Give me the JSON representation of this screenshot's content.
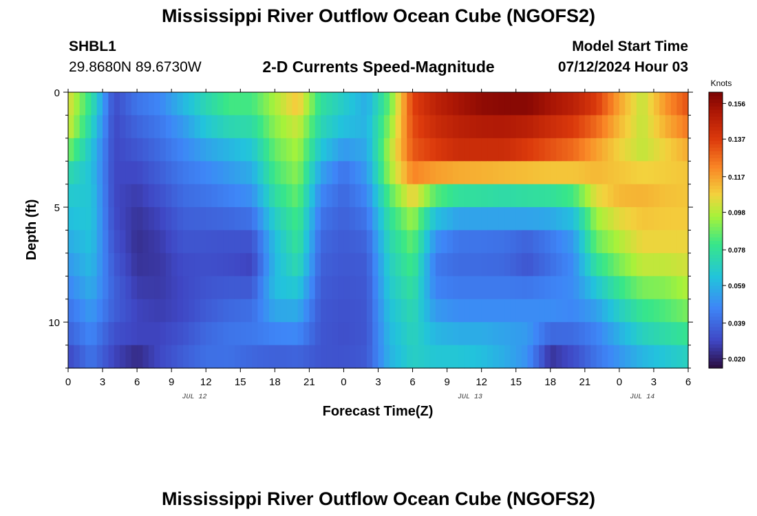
{
  "figure": {
    "title": "Mississippi River Outflow Ocean Cube (NGOFS2)",
    "station_id": "SHBL1",
    "station_coords": "29.8680N  89.6730W",
    "subtitle": "2-D Currents Speed-Magnitude",
    "model_start_label": "Model Start Time",
    "model_start_value": "07/12/2024 Hour 03",
    "bottom_title": "Mississippi River Outflow Ocean Cube (NGOFS2)"
  },
  "chart_data": {
    "type": "heatmap",
    "title": "2-D Currents Speed-Magnitude",
    "xlabel": "Forecast Time(Z)",
    "ylabel": "Depth (ft)",
    "x_hours": [
      0,
      54
    ],
    "y_depth_ft": [
      0,
      12
    ],
    "xlim": [
      0,
      54
    ],
    "ylim": [
      0,
      12
    ],
    "x_tick_labels": [
      "0",
      "3",
      "6",
      "9",
      "12",
      "15",
      "18",
      "21",
      "0",
      "3",
      "6",
      "9",
      "12",
      "15",
      "18",
      "21",
      "0",
      "3",
      "6"
    ],
    "x_date_labels": [
      {
        "hour": 11,
        "label": "JUL 12"
      },
      {
        "hour": 35,
        "label": "JUL 13"
      },
      {
        "hour": 50,
        "label": "JUL 14"
      }
    ],
    "y_tick_labels": [
      "0",
      "5",
      "10"
    ],
    "y_tick_values": [
      0,
      5,
      10
    ],
    "colorbar": {
      "unit": "Knots",
      "min": 0.015,
      "max": 0.162,
      "ticks": [
        "0.156",
        "0.137",
        "0.117",
        "0.098",
        "0.078",
        "0.059",
        "0.039",
        "0.020"
      ],
      "tick_values": [
        0.156,
        0.137,
        0.117,
        0.098,
        0.078,
        0.059,
        0.039,
        0.02
      ]
    },
    "x_columns_hours": [
      0,
      2,
      4,
      6,
      8,
      10,
      12,
      14,
      16,
      18,
      20,
      22,
      24,
      26,
      28,
      30,
      32,
      34,
      36,
      38,
      40,
      42,
      44,
      46,
      48,
      50,
      52,
      54
    ],
    "depth_rows_ft": [
      0,
      1,
      2,
      3,
      4,
      5,
      6,
      7,
      8,
      9,
      10,
      11,
      12
    ],
    "speed_knots": [
      [
        0.105,
        0.08,
        0.032,
        0.045,
        0.05,
        0.065,
        0.075,
        0.085,
        0.085,
        0.098,
        0.115,
        0.08,
        0.07,
        0.055,
        0.085,
        0.136,
        0.148,
        0.156,
        0.16,
        0.162,
        0.162,
        0.156,
        0.15,
        0.14,
        0.118,
        0.1,
        0.12,
        0.135
      ],
      [
        0.105,
        0.075,
        0.03,
        0.04,
        0.045,
        0.055,
        0.07,
        0.08,
        0.08,
        0.095,
        0.105,
        0.075,
        0.065,
        0.06,
        0.09,
        0.135,
        0.146,
        0.15,
        0.155,
        0.156,
        0.156,
        0.15,
        0.145,
        0.135,
        0.115,
        0.1,
        0.118,
        0.13
      ],
      [
        0.1,
        0.068,
        0.03,
        0.036,
        0.042,
        0.05,
        0.06,
        0.065,
        0.07,
        0.09,
        0.098,
        0.07,
        0.06,
        0.058,
        0.095,
        0.132,
        0.14,
        0.145,
        0.145,
        0.145,
        0.14,
        0.135,
        0.13,
        0.12,
        0.11,
        0.1,
        0.11,
        0.12
      ],
      [
        0.08,
        0.062,
        0.03,
        0.032,
        0.038,
        0.045,
        0.05,
        0.055,
        0.06,
        0.085,
        0.095,
        0.06,
        0.045,
        0.055,
        0.1,
        0.13,
        0.135,
        0.14,
        0.14,
        0.14,
        0.135,
        0.13,
        0.125,
        0.115,
        0.105,
        0.1,
        0.105,
        0.11
      ],
      [
        0.068,
        0.065,
        0.03,
        0.028,
        0.035,
        0.042,
        0.045,
        0.05,
        0.055,
        0.08,
        0.09,
        0.05,
        0.04,
        0.05,
        0.09,
        0.115,
        0.1,
        0.09,
        0.088,
        0.085,
        0.088,
        0.09,
        0.095,
        0.11,
        0.115,
        0.115,
        0.112,
        0.11
      ],
      [
        0.065,
        0.065,
        0.03,
        0.026,
        0.03,
        0.038,
        0.04,
        0.042,
        0.045,
        0.072,
        0.085,
        0.045,
        0.038,
        0.045,
        0.08,
        0.1,
        0.07,
        0.065,
        0.065,
        0.065,
        0.065,
        0.065,
        0.07,
        0.1,
        0.11,
        0.112,
        0.11,
        0.11
      ],
      [
        0.06,
        0.065,
        0.032,
        0.024,
        0.028,
        0.035,
        0.035,
        0.036,
        0.038,
        0.065,
        0.08,
        0.04,
        0.036,
        0.04,
        0.075,
        0.09,
        0.055,
        0.045,
        0.045,
        0.045,
        0.045,
        0.048,
        0.055,
        0.09,
        0.1,
        0.108,
        0.108,
        0.108
      ],
      [
        0.055,
        0.062,
        0.034,
        0.024,
        0.026,
        0.032,
        0.032,
        0.03,
        0.028,
        0.06,
        0.078,
        0.038,
        0.035,
        0.036,
        0.07,
        0.085,
        0.045,
        0.04,
        0.04,
        0.038,
        0.03,
        0.04,
        0.05,
        0.085,
        0.095,
        0.105,
        0.105,
        0.105
      ],
      [
        0.05,
        0.06,
        0.036,
        0.026,
        0.026,
        0.03,
        0.032,
        0.032,
        0.03,
        0.062,
        0.07,
        0.036,
        0.034,
        0.035,
        0.068,
        0.08,
        0.043,
        0.04,
        0.04,
        0.04,
        0.038,
        0.042,
        0.048,
        0.07,
        0.085,
        0.095,
        0.095,
        0.1
      ],
      [
        0.045,
        0.055,
        0.038,
        0.028,
        0.027,
        0.03,
        0.035,
        0.038,
        0.04,
        0.062,
        0.062,
        0.035,
        0.033,
        0.034,
        0.065,
        0.075,
        0.05,
        0.048,
        0.048,
        0.048,
        0.048,
        0.05,
        0.05,
        0.06,
        0.075,
        0.085,
        0.088,
        0.095
      ],
      [
        0.04,
        0.05,
        0.035,
        0.03,
        0.028,
        0.03,
        0.036,
        0.04,
        0.042,
        0.05,
        0.052,
        0.034,
        0.032,
        0.034,
        0.062,
        0.072,
        0.055,
        0.05,
        0.05,
        0.05,
        0.05,
        0.048,
        0.045,
        0.048,
        0.062,
        0.075,
        0.08,
        0.085
      ],
      [
        0.035,
        0.045,
        0.03,
        0.028,
        0.03,
        0.036,
        0.042,
        0.045,
        0.045,
        0.044,
        0.044,
        0.034,
        0.032,
        0.034,
        0.06,
        0.07,
        0.065,
        0.065,
        0.065,
        0.06,
        0.055,
        0.03,
        0.035,
        0.045,
        0.055,
        0.065,
        0.07,
        0.075
      ],
      [
        0.025,
        0.04,
        0.028,
        0.018,
        0.03,
        0.036,
        0.04,
        0.038,
        0.032,
        0.03,
        0.032,
        0.033,
        0.034,
        0.036,
        0.058,
        0.068,
        0.065,
        0.065,
        0.06,
        0.055,
        0.045,
        0.02,
        0.028,
        0.04,
        0.048,
        0.055,
        0.06,
        0.065
      ]
    ]
  }
}
